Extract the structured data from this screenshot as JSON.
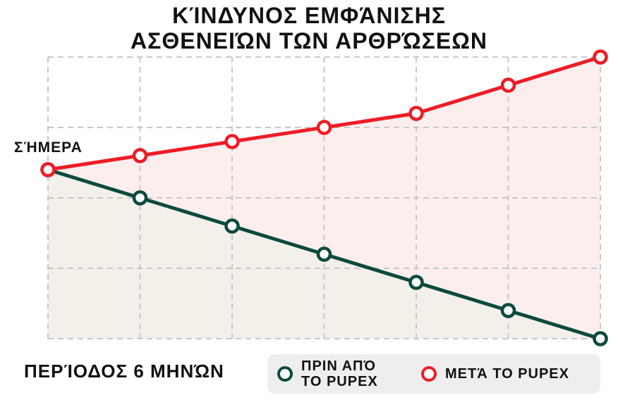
{
  "title_lines": [
    "ΚΊΝΔΥΝΟΣ ΕΜΦΆΝΙΣΗΣ",
    "ΑΣΘΕΝΕΙΏΝ ΤΩΝ ΑΡΘΡΏΣΕΩΝ"
  ],
  "today_label": "ΣΉΜΕΡΑ",
  "colors": {
    "before": "#0c4a3e",
    "after": "#ee1c25",
    "before_fill": "#f3efe9",
    "after_fill": "#fdeeee",
    "grid": "#c8c8c8"
  },
  "chart_data": {
    "type": "line",
    "title": "ΚΊΝΔΥΝΟΣ ΕΜΦΆΝΙΣΗΣ ΑΣΘΕΝΕΙΏΝ ΤΩΝ ΑΡΘΡΏΣΕΩΝ",
    "xlabel": "ΠΕΡΊΟΔΟΣ 6 ΜΗΝΏΝ",
    "ylabel": "",
    "x": [
      0,
      1,
      2,
      3,
      4,
      5,
      6
    ],
    "ylim": [
      0,
      10
    ],
    "grid": true,
    "legend_position": "bottom-right",
    "series": [
      {
        "name": "ΠΡΙΝ ΑΠΌ\nΤΟ PUPEX",
        "key": "before",
        "values": [
          6.0,
          5.0,
          4.0,
          3.0,
          2.0,
          1.0,
          0.0
        ]
      },
      {
        "name": "ΜΕΤΆ ΤΟ PUPEX",
        "key": "after",
        "values": [
          6.0,
          6.5,
          7.0,
          7.5,
          8.0,
          9.0,
          10.0
        ]
      }
    ]
  }
}
